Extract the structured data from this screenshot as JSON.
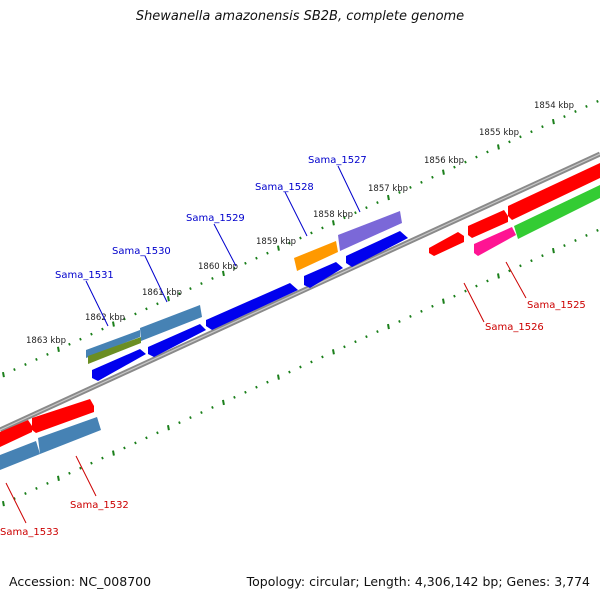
{
  "title": "Shewanella amazonensis SB2B, complete genome",
  "footer": {
    "accession": "Accession: NC_008700",
    "summary": "Topology: circular; Length: 4,306,142 bp; Genes: 3,774"
  },
  "colors": {
    "background": "#ffffff",
    "backbone": "#7a7a7a",
    "tick_marks": "#1a7f1a",
    "forward_label": "#0000cc",
    "reverse_label": "#cc0000"
  },
  "kbp_labels": [
    "1854 kbp",
    "1855 kbp",
    "1856 kbp",
    "1857 kbp",
    "1858 kbp",
    "1859 kbp",
    "1860 kbp",
    "1861 kbp",
    "1862 kbp",
    "1863 kbp"
  ],
  "forward_genes": [
    {
      "label": "Sama_1527",
      "color": "#7b68d8"
    },
    {
      "label": "Sama_1528",
      "color": "#ff9900"
    },
    {
      "label": "Sama_1529",
      "color": "#0000ee"
    },
    {
      "label": "Sama_1530",
      "color": "#4682b4"
    },
    {
      "label": "Sama_1531",
      "color": "#4682b4"
    }
  ],
  "reverse_genes": [
    {
      "label": "Sama_1525",
      "color": "#33cc33"
    },
    {
      "label": "Sama_1526",
      "color": "#ff1493"
    },
    {
      "label": "Sama_1532",
      "color": "#4682b4"
    },
    {
      "label": "Sama_1533",
      "color": "#4682b4"
    }
  ]
}
